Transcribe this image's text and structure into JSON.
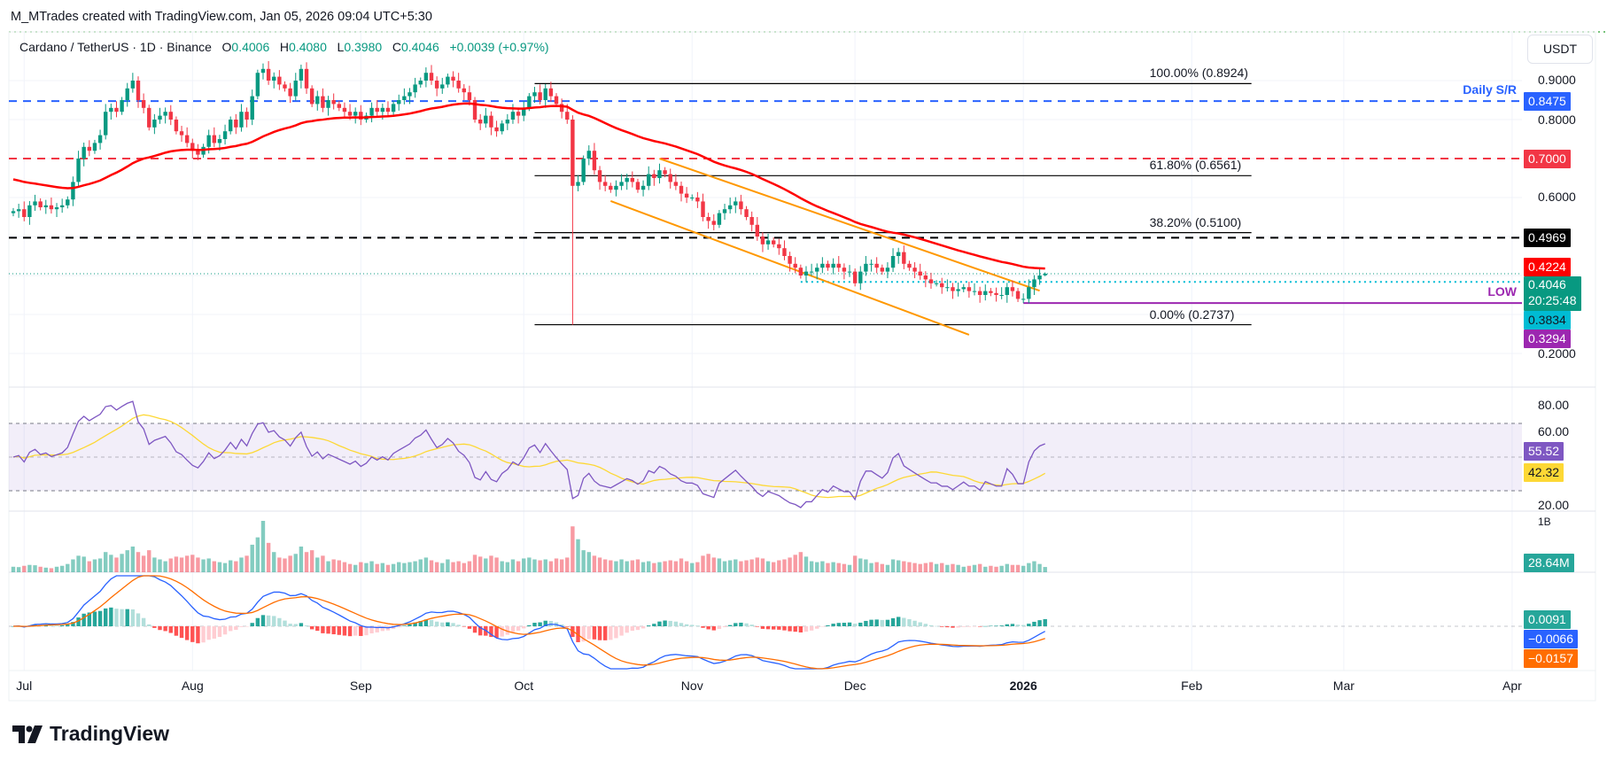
{
  "header": {
    "credit": "M_MTrades created with TradingView.com, Jan 05, 2026 09:04 UTC+5:30",
    "symbol": "Cardano / TetherUS · 1D · Binance",
    "o_label": "O",
    "o": "0.4006",
    "h_label": "H",
    "h": "0.4080",
    "l_label": "L",
    "l": "0.3980",
    "c_label": "C",
    "c": "0.4046",
    "change": "+0.0039 (+0.97%)"
  },
  "currency_button": "USDT",
  "colors": {
    "up": "#089981",
    "down": "#f23645",
    "ema": "#ff0000",
    "rsi": "#7e57c2",
    "rsi_ma": "#fdd835",
    "macd": "#2962ff",
    "signal": "#ff6d00",
    "channel": "#ff9800"
  },
  "price_axis": {
    "ticks": [
      "0.9000",
      "0.8000",
      "0.6000",
      "0.2000"
    ]
  },
  "rsi_axis": {
    "ticks": [
      "80.00",
      "60.00",
      "20.00"
    ]
  },
  "volume_axis": {
    "tick": "1B"
  },
  "time_axis": [
    {
      "label": "Jul",
      "date": "2025-07-01"
    },
    {
      "label": "Aug",
      "date": "2025-08-01"
    },
    {
      "label": "Sep",
      "date": "2025-09-01"
    },
    {
      "label": "Oct",
      "date": "2025-10-01"
    },
    {
      "label": "Nov",
      "date": "2025-11-01"
    },
    {
      "label": "Dec",
      "date": "2025-12-01"
    },
    {
      "label": "2026",
      "date": "2026-01-01"
    },
    {
      "label": "Feb",
      "date": "2026-02-01"
    },
    {
      "label": "Mar",
      "date": "2026-03-01"
    },
    {
      "label": "Apr",
      "date": "2026-04-01"
    }
  ],
  "price_labels": [
    {
      "text": "0.8475",
      "value": 0.8475,
      "bg": "#2962ff",
      "fg": "#ffffff"
    },
    {
      "text": "0.7000",
      "value": 0.7,
      "bg": "#f23645",
      "fg": "#ffffff"
    },
    {
      "text": "0.4969",
      "value": 0.4969,
      "bg": "#000000",
      "fg": "#ffffff"
    },
    {
      "text": "0.4224",
      "value": 0.4224,
      "bg": "#ff0000",
      "fg": "#ffffff"
    },
    {
      "text": "0.4046",
      "sub": "20:25:48",
      "value": 0.4046,
      "bg": "#089981",
      "fg": "#ffffff"
    },
    {
      "text": "0.3834",
      "value": 0.3834,
      "bg": "#00bcd4",
      "fg": "#131722"
    },
    {
      "text": "0.3294",
      "value": 0.3294,
      "bg": "#9c27b0",
      "fg": "#ffffff"
    }
  ],
  "indicator_labels": {
    "rsi": {
      "text": "55.52",
      "bg": "#7e57c2",
      "fg": "#ffffff"
    },
    "rsi_ma": {
      "text": "42.32",
      "bg": "#fdd835",
      "fg": "#131722"
    },
    "volume": {
      "text": "28.64M",
      "bg": "#26a69a",
      "fg": "#ffffff"
    },
    "macd_hist": {
      "text": "0.0091",
      "bg": "#26a69a",
      "fg": "#ffffff"
    },
    "macd": {
      "text": "−0.0066",
      "bg": "#2962ff",
      "fg": "#ffffff"
    },
    "signal": {
      "text": "−0.0157",
      "bg": "#ff6d00",
      "fg": "#ffffff"
    }
  },
  "levels": [
    {
      "name": "daily-sr",
      "value": 0.8475,
      "color": "#2962ff",
      "style": "dashed",
      "label": "Daily S/R"
    },
    {
      "name": "resistance-070",
      "value": 0.7,
      "color": "#f23645",
      "style": "dashed"
    },
    {
      "name": "resistance-04969",
      "value": 0.4969,
      "color": "#000000",
      "style": "dashed"
    },
    {
      "name": "support-03834",
      "value": 0.3834,
      "color": "#00bcd4",
      "style": "dotted",
      "from": "2025-11-21"
    },
    {
      "name": "low",
      "value": 0.3294,
      "color": "#9c27b0",
      "style": "solid",
      "from": "2026-01-01",
      "label": "LOW"
    }
  ],
  "fibonacci": {
    "from": "2025-10-03",
    "to": "2026-02-12",
    "levels": [
      {
        "label": "100.00% (0.8924)",
        "value": 0.8924
      },
      {
        "label": "61.80% (0.6561)",
        "value": 0.6561
      },
      {
        "label": "38.20% (0.5100)",
        "value": 0.51
      },
      {
        "label": "0.00% (0.2737)",
        "value": 0.2737
      }
    ]
  },
  "channel": [
    {
      "name": "channel-upper",
      "points": [
        [
          "2025-10-26",
          0.7
        ],
        [
          "2026-01-04",
          0.361
        ]
      ]
    },
    {
      "name": "channel-lower",
      "points": [
        [
          "2025-10-17",
          0.591
        ],
        [
          "2025-12-22",
          0.248
        ]
      ]
    }
  ],
  "chart_data": {
    "type": "candlestick",
    "start_date": "2025-06-29",
    "ylim": [
      0.2,
      0.95
    ],
    "close": [
      0.565,
      0.57,
      0.55,
      0.58,
      0.59,
      0.575,
      0.58,
      0.57,
      0.575,
      0.58,
      0.595,
      0.64,
      0.7,
      0.73,
      0.72,
      0.74,
      0.76,
      0.82,
      0.83,
      0.82,
      0.85,
      0.88,
      0.9,
      0.85,
      0.83,
      0.78,
      0.8,
      0.81,
      0.82,
      0.8,
      0.77,
      0.76,
      0.74,
      0.72,
      0.71,
      0.73,
      0.76,
      0.74,
      0.75,
      0.77,
      0.8,
      0.78,
      0.82,
      0.8,
      0.86,
      0.92,
      0.93,
      0.9,
      0.91,
      0.89,
      0.88,
      0.86,
      0.9,
      0.93,
      0.88,
      0.84,
      0.86,
      0.83,
      0.85,
      0.84,
      0.83,
      0.82,
      0.81,
      0.82,
      0.8,
      0.81,
      0.83,
      0.82,
      0.83,
      0.82,
      0.84,
      0.85,
      0.86,
      0.87,
      0.89,
      0.9,
      0.92,
      0.9,
      0.88,
      0.89,
      0.91,
      0.9,
      0.88,
      0.87,
      0.85,
      0.8,
      0.79,
      0.81,
      0.78,
      0.77,
      0.79,
      0.8,
      0.82,
      0.81,
      0.83,
      0.86,
      0.87,
      0.85,
      0.88,
      0.86,
      0.84,
      0.82,
      0.8,
      0.63,
      0.64,
      0.7,
      0.72,
      0.67,
      0.64,
      0.63,
      0.62,
      0.63,
      0.64,
      0.65,
      0.64,
      0.62,
      0.63,
      0.66,
      0.65,
      0.67,
      0.66,
      0.64,
      0.63,
      0.61,
      0.6,
      0.6,
      0.59,
      0.55,
      0.54,
      0.53,
      0.56,
      0.57,
      0.58,
      0.59,
      0.57,
      0.55,
      0.53,
      0.5,
      0.48,
      0.49,
      0.48,
      0.47,
      0.45,
      0.43,
      0.42,
      0.4,
      0.41,
      0.41,
      0.42,
      0.43,
      0.42,
      0.43,
      0.42,
      0.41,
      0.41,
      0.38,
      0.41,
      0.43,
      0.43,
      0.42,
      0.41,
      0.42,
      0.45,
      0.46,
      0.43,
      0.42,
      0.41,
      0.4,
      0.39,
      0.38,
      0.38,
      0.37,
      0.37,
      0.36,
      0.365,
      0.37,
      0.36,
      0.36,
      0.35,
      0.36,
      0.355,
      0.35,
      0.35,
      0.37,
      0.36,
      0.34,
      0.34,
      0.37,
      0.39,
      0.4,
      0.4046
    ],
    "last_candle": {
      "open": 0.4006,
      "high": 0.408,
      "low": 0.398,
      "close": 0.4046
    },
    "notable_lows": [
      {
        "date": "2025-10-10",
        "low": 0.2737
      },
      {
        "date": "2026-01-01",
        "low": 0.3294
      }
    ],
    "volume_millions": [
      30,
      28,
      35,
      40,
      38,
      30,
      25,
      22,
      30,
      35,
      45,
      70,
      90,
      85,
      60,
      70,
      75,
      110,
      95,
      80,
      100,
      120,
      140,
      110,
      90,
      120,
      80,
      70,
      60,
      75,
      85,
      80,
      90,
      95,
      80,
      70,
      75,
      60,
      55,
      50,
      65,
      60,
      80,
      90,
      150,
      190,
      280,
      160,
      110,
      80,
      75,
      90,
      100,
      140,
      110,
      120,
      80,
      90,
      60,
      70,
      65,
      55,
      45,
      40,
      55,
      50,
      60,
      45,
      50,
      40,
      45,
      55,
      50,
      55,
      60,
      70,
      80,
      65,
      55,
      50,
      70,
      55,
      60,
      50,
      60,
      95,
      85,
      75,
      90,
      80,
      60,
      55,
      70,
      60,
      75,
      80,
      70,
      65,
      70,
      60,
      75,
      70,
      80,
      250,
      180,
      120,
      110,
      90,
      80,
      70,
      65,
      60,
      70,
      60,
      65,
      70,
      55,
      60,
      50,
      55,
      60,
      65,
      60,
      75,
      60,
      50,
      55,
      90,
      100,
      80,
      75,
      60,
      65,
      70,
      60,
      65,
      70,
      80,
      75,
      60,
      55,
      65,
      70,
      80,
      95,
      110,
      85,
      60,
      55,
      60,
      50,
      55,
      50,
      45,
      40,
      90,
      75,
      70,
      50,
      55,
      45,
      40,
      70,
      65,
      60,
      55,
      50,
      45,
      50,
      55,
      45,
      50,
      40,
      45,
      40,
      30,
      35,
      40,
      45,
      30,
      35,
      30,
      35,
      45,
      40,
      40,
      35,
      50,
      60,
      45,
      28.64
    ],
    "indicators": [
      "EMA 50",
      "RSI 14 with MA",
      "Volume",
      "MACD 12 26 9"
    ]
  }
}
